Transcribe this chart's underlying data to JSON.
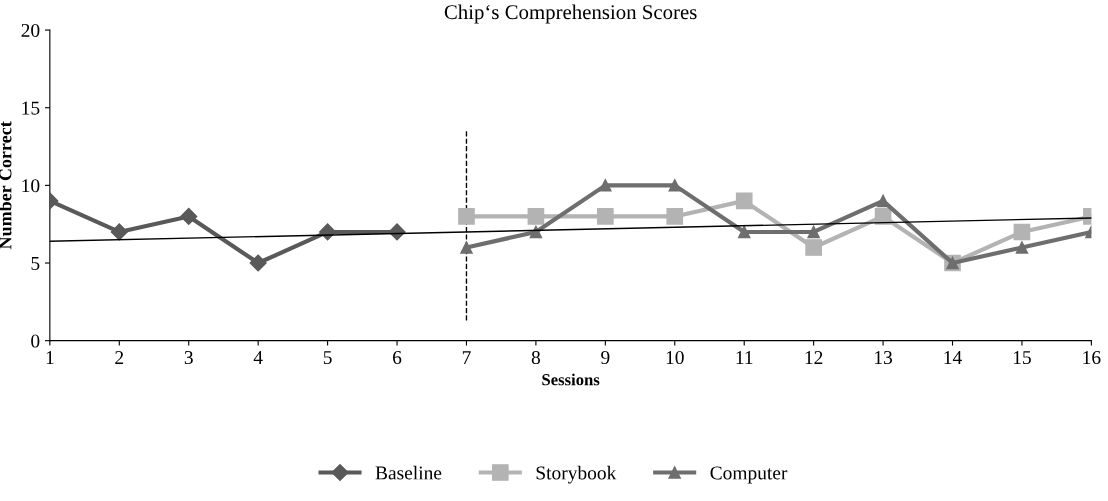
{
  "chart_data": {
    "type": "line",
    "title": "Chip‘s Comprehension Scores",
    "xlabel": "Sessions",
    "ylabel": "Number Correct",
    "xlim": [
      1,
      16
    ],
    "xticks": [
      1,
      2,
      3,
      4,
      5,
      6,
      7,
      8,
      9,
      10,
      11,
      12,
      13,
      14,
      15,
      16
    ],
    "ylim": [
      0,
      20
    ],
    "yticks": [
      0,
      5,
      10,
      15,
      20
    ],
    "grid": false,
    "legend": "bottom",
    "series": [
      {
        "name": "Baseline",
        "color": "#595959",
        "marker": "diamond",
        "x": [
          1,
          2,
          3,
          4,
          5,
          6
        ],
        "values": [
          9,
          7,
          8,
          5,
          7,
          7
        ]
      },
      {
        "name": "Storybook",
        "color": "#b3b3b3",
        "marker": "square",
        "x": [
          7,
          8,
          9,
          10,
          11,
          12,
          13,
          14,
          15,
          16
        ],
        "values": [
          8,
          8,
          8,
          8,
          9,
          6,
          8,
          5,
          7,
          8
        ]
      },
      {
        "name": "Computer",
        "color": "#6e6e6e",
        "marker": "triangle",
        "x": [
          7,
          8,
          9,
          10,
          11,
          12,
          13,
          14,
          15,
          16
        ],
        "values": [
          6,
          7,
          10,
          10,
          7,
          7,
          9,
          5,
          6,
          7
        ]
      },
      {
        "type": "line",
        "color": "#000000",
        "marker": "none",
        "x": [
          1,
          16
        ],
        "values": [
          6.4,
          7.9
        ]
      }
    ],
    "ref_lines": [
      {
        "axis": "x",
        "value": 7,
        "color": "#000000",
        "line_style": "dashed"
      }
    ]
  }
}
